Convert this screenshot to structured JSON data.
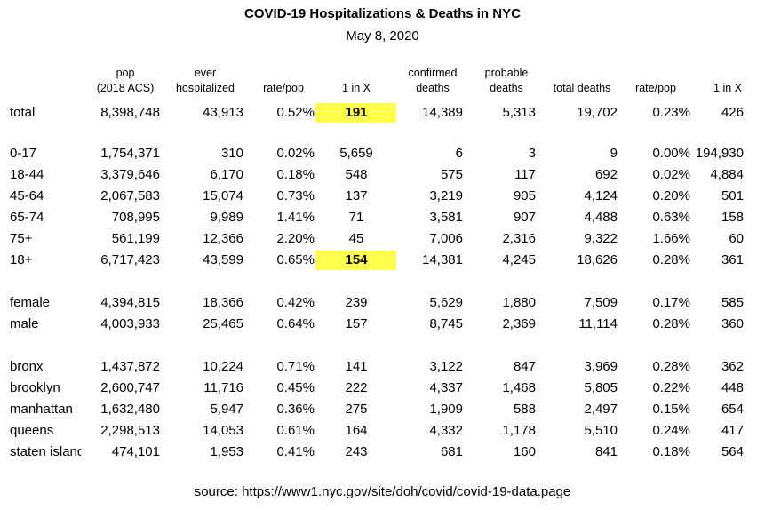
{
  "title": "COVID-19 Hospitalizations & Deaths in NYC",
  "subtitle": "May 8, 2020",
  "headers": [
    "pop\n(2018 ACS)",
    "ever\nhospitalized",
    "rate/pop",
    "1 in X",
    "confirmed\ndeaths",
    "probable\ndeaths",
    "total deaths",
    "rate/pop",
    "1 in X"
  ],
  "rows": [
    {
      "label": "total",
      "values": [
        "8,398,748",
        "43,913",
        "0.52%",
        "191",
        "14,389",
        "5,313",
        "19,702",
        "0.23%",
        "426"
      ],
      "highlight": true
    },
    {
      "label": "0-17",
      "values": [
        "1,754,371",
        "310",
        "0.02%",
        "5,659",
        "6",
        "3",
        "9",
        "0.00%",
        "194,930"
      ]
    },
    {
      "label": "18-44",
      "values": [
        "3,379,646",
        "6,170",
        "0.18%",
        "548",
        "575",
        "117",
        "692",
        "0.02%",
        "4,884"
      ]
    },
    {
      "label": "45-64",
      "values": [
        "2,067,583",
        "15,074",
        "0.73%",
        "137",
        "3,219",
        "905",
        "4,124",
        "0.20%",
        "501"
      ]
    },
    {
      "label": "65-74",
      "values": [
        "708,995",
        "9,989",
        "1.41%",
        "71",
        "3,581",
        "907",
        "4,488",
        "0.63%",
        "158"
      ]
    },
    {
      "label": "75+",
      "values": [
        "561,199",
        "12,366",
        "2.20%",
        "45",
        "7,006",
        "2,316",
        "9,322",
        "1.66%",
        "60"
      ]
    },
    {
      "label": "18+",
      "values": [
        "6,717,423",
        "43,599",
        "0.65%",
        "154",
        "14,381",
        "4,245",
        "18,626",
        "0.28%",
        "361"
      ],
      "highlight": true
    },
    {
      "label": "female",
      "values": [
        "4,394,815",
        "18,366",
        "0.42%",
        "239",
        "5,629",
        "1,880",
        "7,509",
        "0.17%",
        "585"
      ]
    },
    {
      "label": "male",
      "values": [
        "4,003,933",
        "25,465",
        "0.64%",
        "157",
        "8,745",
        "2,369",
        "11,114",
        "0.28%",
        "360"
      ]
    },
    {
      "label": "bronx",
      "values": [
        "1,437,872",
        "10,224",
        "0.71%",
        "141",
        "3,122",
        "847",
        "3,969",
        "0.28%",
        "362"
      ]
    },
    {
      "label": "brooklyn",
      "values": [
        "2,600,747",
        "11,716",
        "0.45%",
        "222",
        "4,337",
        "1,468",
        "5,805",
        "0.22%",
        "448"
      ]
    },
    {
      "label": "manhattan",
      "values": [
        "1,632,480",
        "5,947",
        "0.36%",
        "275",
        "1,909",
        "588",
        "2,497",
        "0.15%",
        "654"
      ]
    },
    {
      "label": "queens",
      "values": [
        "2,298,513",
        "14,053",
        "0.61%",
        "164",
        "4,332",
        "1,178",
        "5,510",
        "0.24%",
        "417"
      ]
    },
    {
      "label": "staten island",
      "values": [
        "474,101",
        "1,953",
        "0.41%",
        "243",
        "681",
        "160",
        "841",
        "0.18%",
        "564"
      ]
    }
  ],
  "highlight_color": "#ffff4d",
  "source": "source: https://www1.nyc.gov/site/doh/covid/covid-19-data.page"
}
